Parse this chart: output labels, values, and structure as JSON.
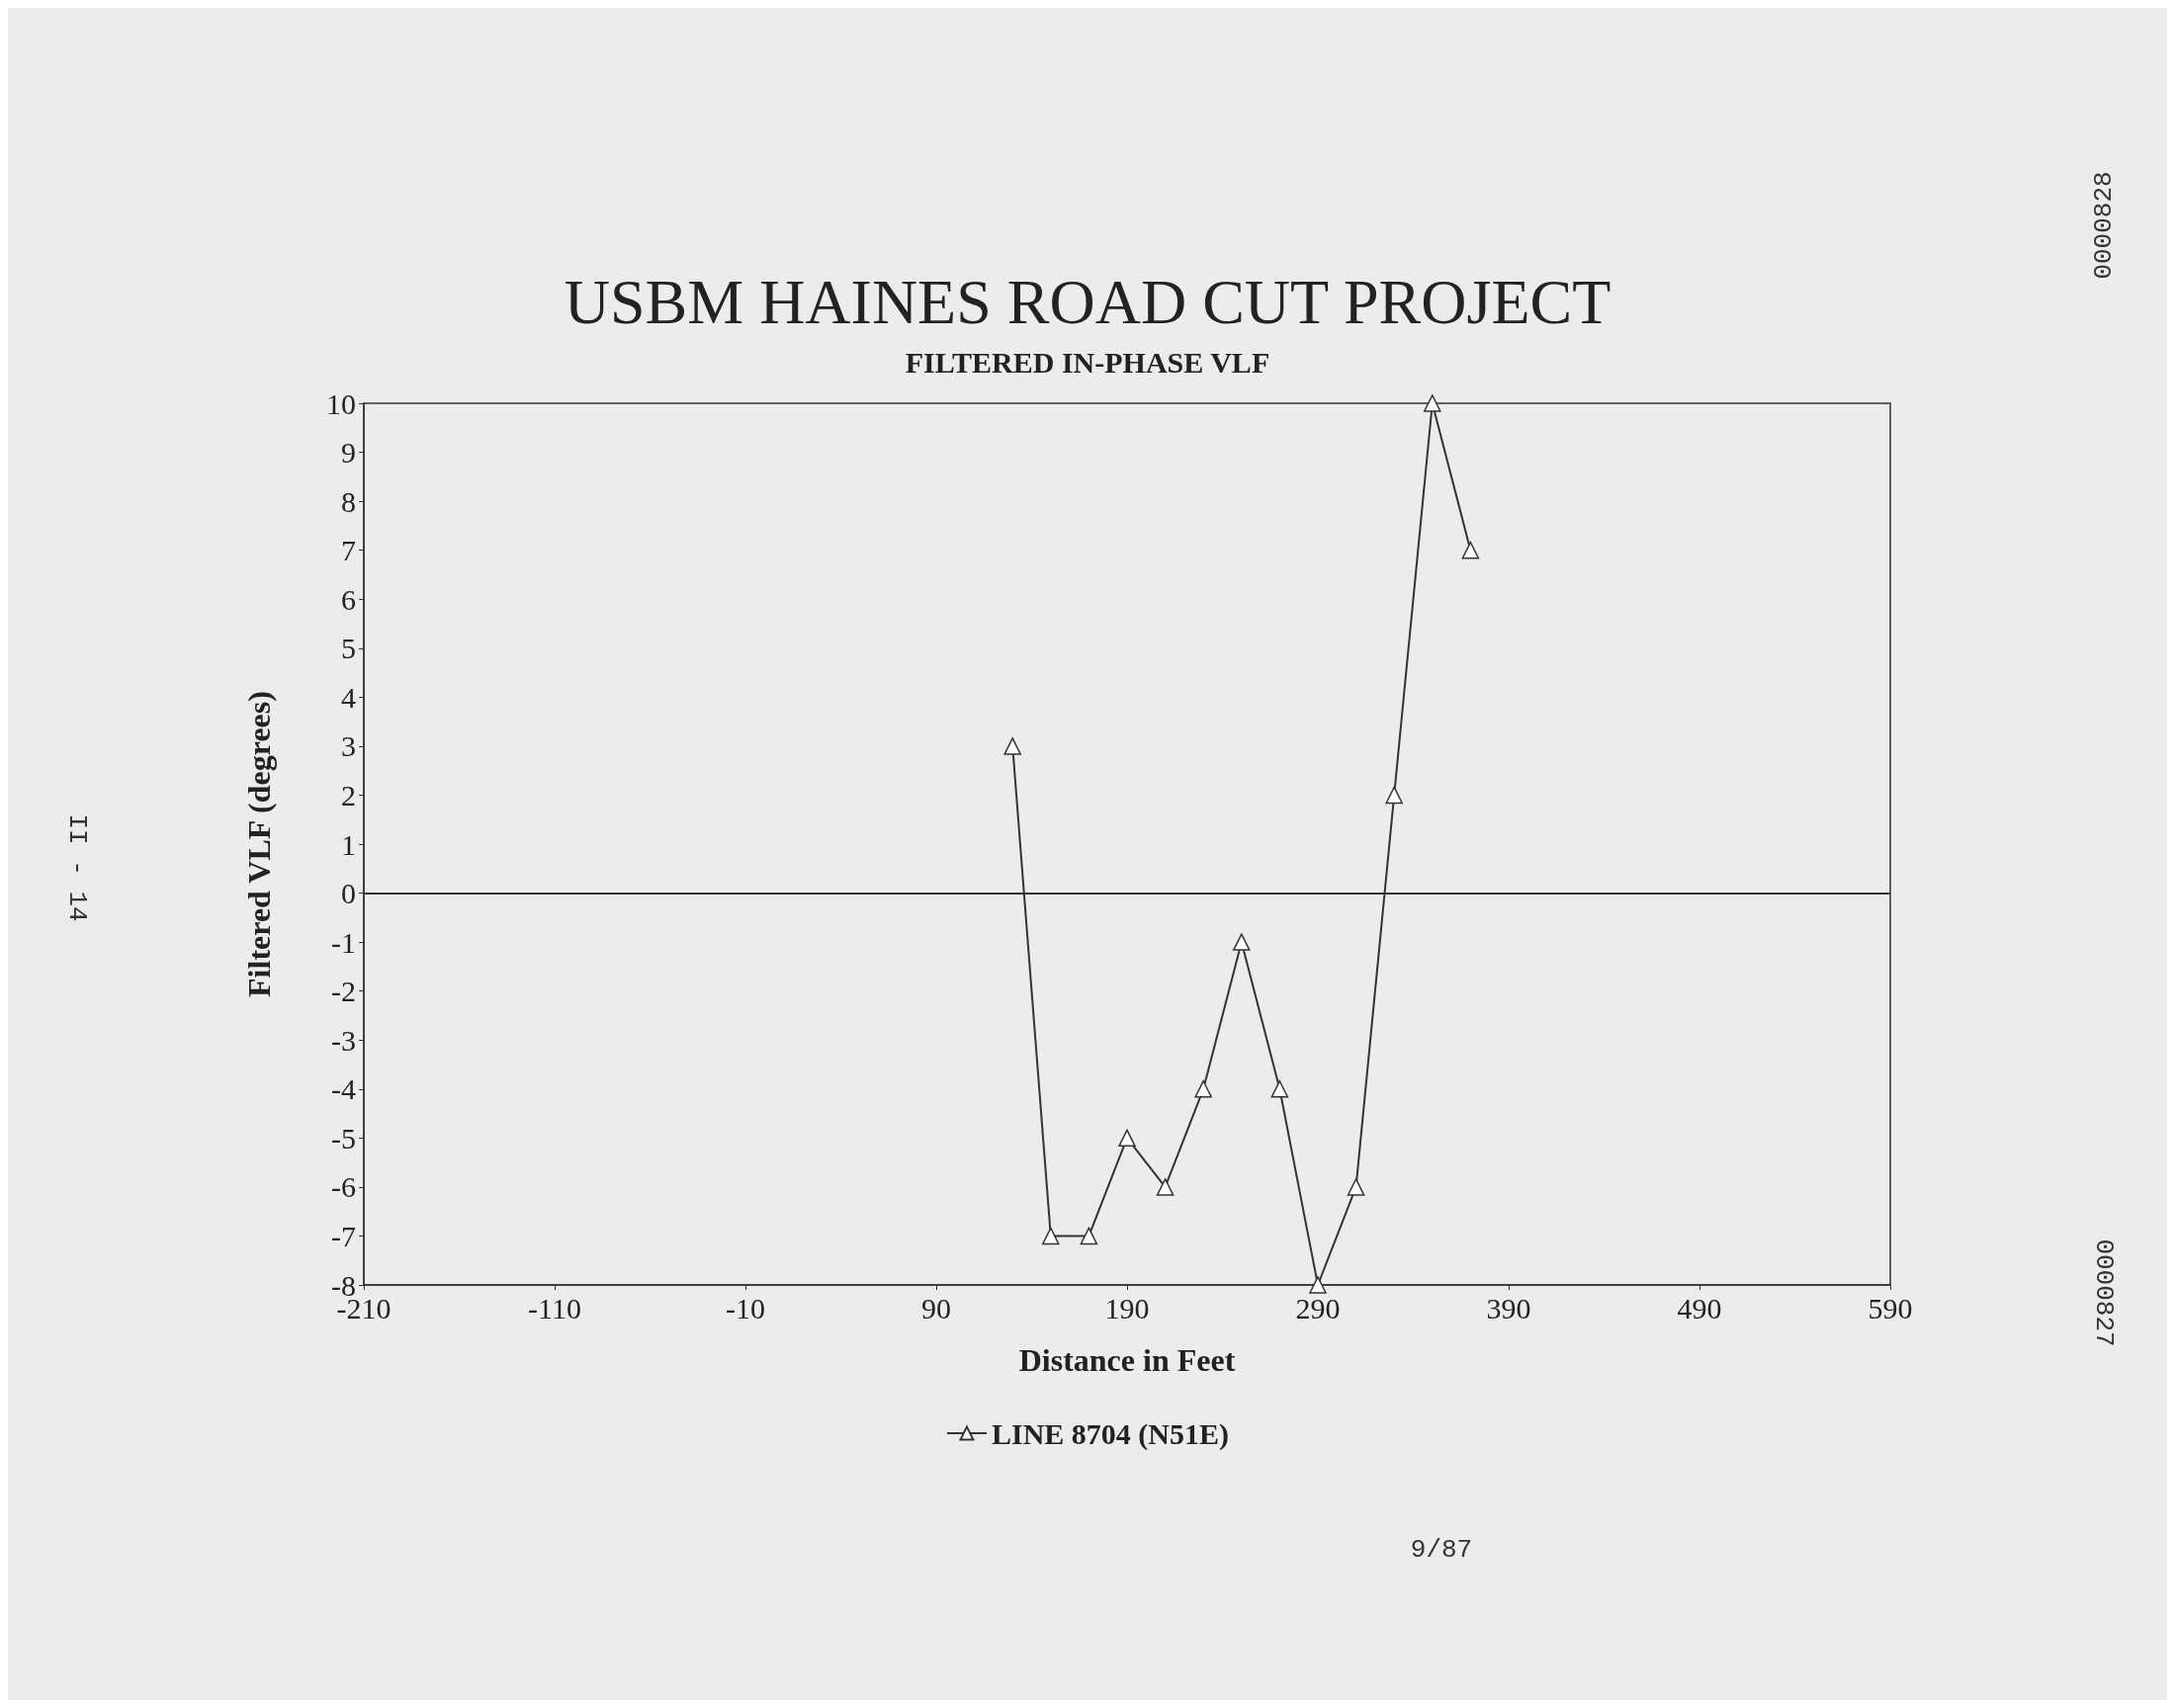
{
  "chart_data": {
    "type": "line",
    "title": "USBM HAINES ROAD CUT PROJECT",
    "subtitle": "FILTERED IN-PHASE VLF",
    "xlabel": "Distance in Feet",
    "ylabel": "Filtered VLF (degrees)",
    "x": [
      130,
      150,
      170,
      190,
      210,
      230,
      250,
      270,
      290,
      310,
      330,
      350,
      370
    ],
    "series": [
      {
        "name": "LINE 8704 (N51E)",
        "color": "#333333",
        "values": [
          3,
          -7,
          -7,
          -5,
          -6,
          -4,
          -1,
          -4,
          -8,
          -6,
          2,
          10,
          7
        ]
      }
    ],
    "xlim": [
      -210,
      590
    ],
    "xticks": [
      -210,
      -110,
      -10,
      90,
      190,
      290,
      390,
      490,
      590
    ],
    "ylim": [
      -8,
      10
    ],
    "yticks": [
      -8,
      -7,
      -6,
      -5,
      -4,
      -3,
      -2,
      -1,
      0,
      1,
      2,
      3,
      4,
      5,
      6,
      7,
      8,
      9,
      10
    ],
    "ref_lines": [
      {
        "axis": "y",
        "value": 0,
        "color": "#333333"
      }
    ],
    "marker": "triangle",
    "line_style": "solid",
    "grid": false,
    "legend": "bottom",
    "annotations": [
      "9/87",
      "II - 14",
      "0000827",
      "0000828"
    ]
  }
}
